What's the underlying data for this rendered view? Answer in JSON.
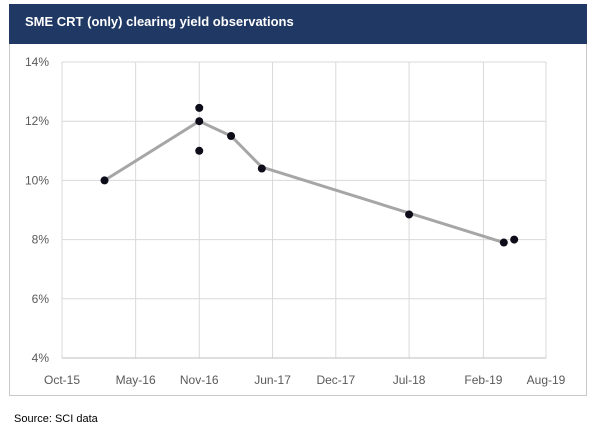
{
  "header": {
    "title": "SME CRT (only) clearing yield observations"
  },
  "footer": {
    "source": "Source:  SCI data"
  },
  "colors": {
    "header_bg": "#1f3864",
    "trend_line": "#a6a6a6",
    "points": "#0d0d1a",
    "grid": "#d9d9d9"
  },
  "chart_data": {
    "type": "scatter",
    "title": "SME CRT (only) clearing yield observations",
    "xlabel": "",
    "ylabel": "",
    "x_ticks": [
      "Oct-15",
      "May-16",
      "Nov-16",
      "Jun-17",
      "Dec-17",
      "Jul-18",
      "Feb-19",
      "Aug-19"
    ],
    "x_tick_dates": [
      "2015-10-01",
      "2016-05-01",
      "2016-11-01",
      "2017-06-01",
      "2017-12-01",
      "2018-07-01",
      "2019-02-01",
      "2019-08-01"
    ],
    "y_ticks": [
      "4%",
      "6%",
      "8%",
      "10%",
      "12%",
      "14%"
    ],
    "xlim": [
      "2015-10-01",
      "2019-08-01"
    ],
    "ylim": [
      4,
      14
    ],
    "grid": true,
    "legend": "none",
    "series": [
      {
        "kind": "points",
        "points": [
          {
            "x": "2016-02-01",
            "y": 10.0
          },
          {
            "x": "2016-11-01",
            "y": 12.45
          },
          {
            "x": "2016-11-01",
            "y": 12.0
          },
          {
            "x": "2016-11-01",
            "y": 11.0
          },
          {
            "x": "2017-02-01",
            "y": 11.5
          },
          {
            "x": "2017-05-01",
            "y": 10.4
          },
          {
            "x": "2018-07-01",
            "y": 8.85
          },
          {
            "x": "2019-04-01",
            "y": 7.9
          },
          {
            "x": "2019-05-01",
            "y": 8.0
          }
        ]
      },
      {
        "kind": "line",
        "points": [
          {
            "x": "2016-02-01",
            "y": 10.0
          },
          {
            "x": "2016-11-01",
            "y": 12.0
          },
          {
            "x": "2017-02-01",
            "y": 11.5
          },
          {
            "x": "2017-05-01",
            "y": 10.45
          },
          {
            "x": "2019-04-01",
            "y": 7.9
          }
        ]
      }
    ]
  }
}
